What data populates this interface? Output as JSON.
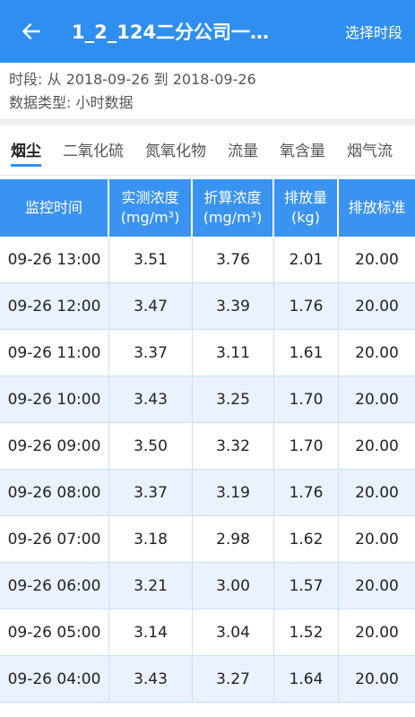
{
  "appbar": {
    "title": "1_2_124二分公司一…",
    "action_label": "选择时段"
  },
  "info": {
    "period": "时段: 从 2018-09-26 到 2018-09-26",
    "data_type": "数据类型: 小时数据"
  },
  "tabs": [
    {
      "label": "烟尘"
    },
    {
      "label": "二氧化硫"
    },
    {
      "label": "氮氧化物"
    },
    {
      "label": "流量"
    },
    {
      "label": "氧含量"
    },
    {
      "label": "烟气流"
    }
  ],
  "table": {
    "headers": [
      {
        "line1": "监控时间",
        "line2": ""
      },
      {
        "line1": "实测浓度",
        "line2": "(mg/m³)"
      },
      {
        "line1": "折算浓度",
        "line2": "(mg/m³)"
      },
      {
        "line1": "排放量",
        "line2": "(kg)"
      },
      {
        "line1": "排放标准",
        "line2": ""
      }
    ],
    "rows": [
      {
        "time": "09-26 13:00",
        "measured": "3.51",
        "converted": "3.76",
        "emission": "2.01",
        "standard": "20.00"
      },
      {
        "time": "09-26 12:00",
        "measured": "3.47",
        "converted": "3.39",
        "emission": "1.76",
        "standard": "20.00"
      },
      {
        "time": "09-26 11:00",
        "measured": "3.37",
        "converted": "3.11",
        "emission": "1.61",
        "standard": "20.00"
      },
      {
        "time": "09-26 10:00",
        "measured": "3.43",
        "converted": "3.25",
        "emission": "1.70",
        "standard": "20.00"
      },
      {
        "time": "09-26 09:00",
        "measured": "3.50",
        "converted": "3.32",
        "emission": "1.70",
        "standard": "20.00"
      },
      {
        "time": "09-26 08:00",
        "measured": "3.37",
        "converted": "3.19",
        "emission": "1.76",
        "standard": "20.00"
      },
      {
        "time": "09-26 07:00",
        "measured": "3.18",
        "converted": "2.98",
        "emission": "1.62",
        "standard": "20.00"
      },
      {
        "time": "09-26 06:00",
        "measured": "3.21",
        "converted": "3.00",
        "emission": "1.57",
        "standard": "20.00"
      },
      {
        "time": "09-26 05:00",
        "measured": "3.14",
        "converted": "3.04",
        "emission": "1.52",
        "standard": "20.00"
      },
      {
        "time": "09-26 04:00",
        "measured": "3.43",
        "converted": "3.27",
        "emission": "1.64",
        "standard": "20.00"
      }
    ]
  },
  "colors": {
    "accent": "#2f8ff0",
    "header_bg": "#3a93f0",
    "alt_row": "#e9f2fe"
  },
  "icons": {
    "back": "arrow-left-icon"
  }
}
